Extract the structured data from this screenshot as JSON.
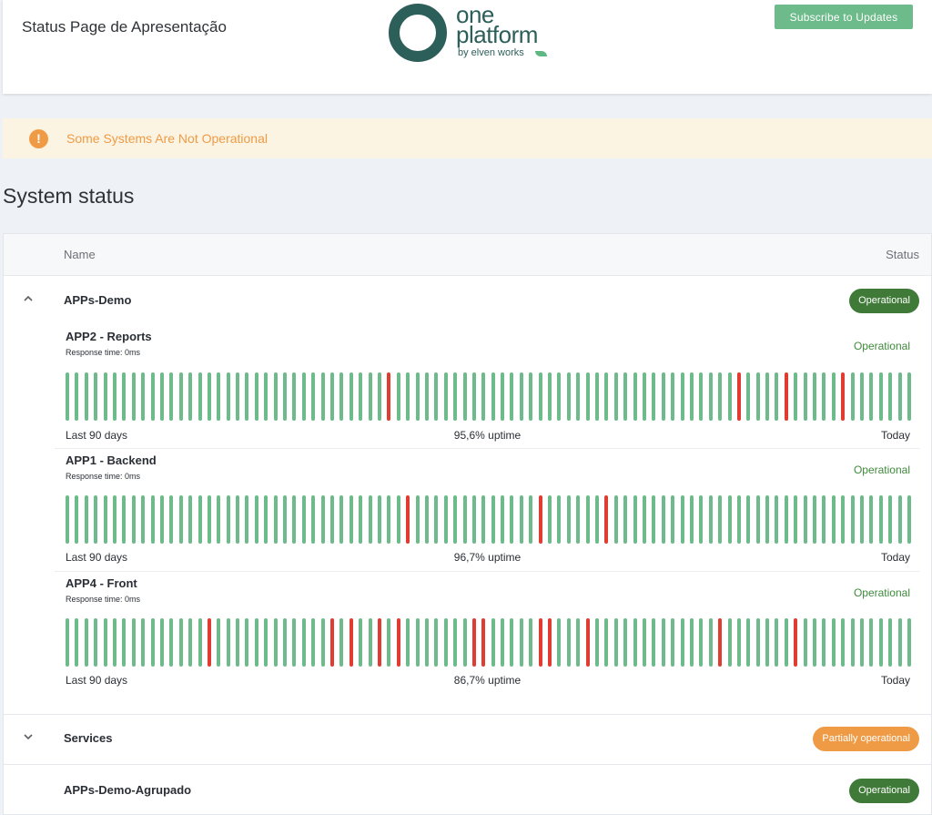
{
  "header": {
    "page_name": "Status Page de Apresentação",
    "logo": {
      "line1": "one",
      "line2": "platform",
      "by": "by elven works",
      "color": "#2c5e5a"
    },
    "subscribe_label": "Subscribe to Updates"
  },
  "alert": {
    "icon": "!",
    "text": "Some Systems Are Not Operational",
    "color": "#ef9b45"
  },
  "section_title": "System status",
  "table": {
    "col_name": "Name",
    "col_status": "Status"
  },
  "groups": [
    {
      "name": "APPs-Demo",
      "status": "Operational",
      "expanded": true,
      "components": [
        {
          "name": "APP2 - Reports",
          "response": "Response time: 0ms",
          "status": "Operational",
          "range_label": "Last 90 days",
          "uptime": "95,6% uptime",
          "today_label": "Today",
          "down_days": [
            34,
            71,
            76,
            82
          ]
        },
        {
          "name": "APP1 - Backend",
          "response": "Response time: 0ms",
          "status": "Operational",
          "range_label": "Last 90 days",
          "uptime": "96,7% uptime",
          "today_label": "Today",
          "down_days": [
            36,
            50,
            57
          ]
        },
        {
          "name": "APP4 - Front",
          "response": "Response time: 0ms",
          "status": "Operational",
          "range_label": "Last 90 days",
          "uptime": "86,7% uptime",
          "today_label": "Today",
          "down_days": [
            15,
            28,
            30,
            33,
            35,
            43,
            44,
            50,
            51,
            55,
            69,
            77
          ]
        }
      ]
    },
    {
      "name": "Services",
      "status": "Partially operational",
      "expanded": false
    },
    {
      "name": "APPs-Demo-Agrupado",
      "status": "Operational",
      "expanded": false
    }
  ],
  "colors": {
    "up": "#6dbb8a",
    "down": "#e03c31",
    "operational": "#3f7a38",
    "partial": "#ef9b45"
  },
  "days": 90
}
